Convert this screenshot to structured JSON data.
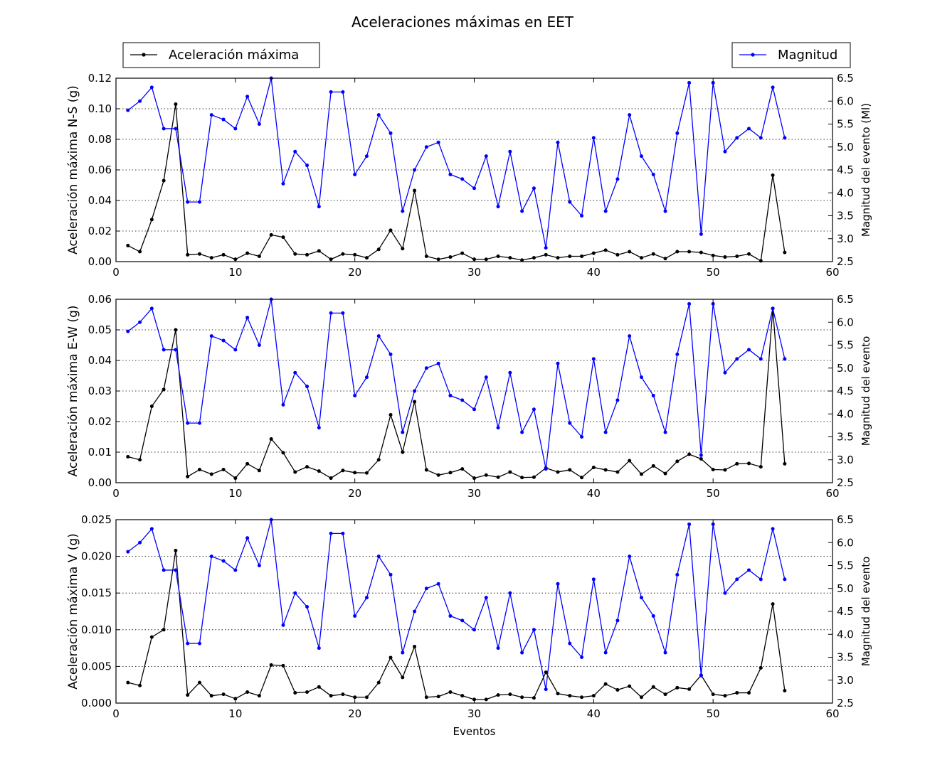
{
  "figure_title": "Aceleraciones máximas en EET",
  "colors": {
    "accel": "#000000",
    "magnitude": "#0000ff",
    "grid": "#000000"
  },
  "legend": {
    "accel": "Aceleración máxima",
    "magnitude": "Magnitud"
  },
  "chart_data": [
    {
      "type": "line",
      "name": "N-S",
      "ylabel": "Aceleración máxima N-S (g)",
      "y2label": "Magnitud del evento (Ml)",
      "xlabel": "",
      "xlim": [
        0,
        60
      ],
      "ylim": [
        0,
        0.12
      ],
      "y2lim": [
        2.5,
        6.5
      ],
      "xticks": [
        0,
        10,
        20,
        30,
        40,
        50,
        60
      ],
      "yticks": [
        0.0,
        0.02,
        0.04,
        0.06,
        0.08,
        0.1,
        0.12
      ],
      "ytick_labels": [
        "0.00",
        "0.02",
        "0.04",
        "0.06",
        "0.08",
        "0.10",
        "0.12"
      ],
      "y2ticks": [
        2.5,
        3.0,
        3.5,
        4.0,
        4.5,
        5.0,
        5.5,
        6.0,
        6.5
      ],
      "y2tick_labels": [
        "2.5",
        "3.0",
        "3.5",
        "4.0",
        "4.5",
        "5.0",
        "5.5",
        "6.0",
        "6.5"
      ],
      "grid": "horizontal-dotted",
      "series": [
        {
          "name": "Aceleración máxima",
          "axis": "left",
          "values": [
            0.0105,
            0.0065,
            0.0275,
            0.053,
            0.103,
            0.0045,
            0.005,
            0.0025,
            0.0045,
            0.0015,
            0.0055,
            0.0035,
            0.0175,
            0.016,
            0.005,
            0.0045,
            0.007,
            0.0015,
            0.005,
            0.0045,
            0.0025,
            0.008,
            0.0205,
            0.0085,
            0.0465,
            0.0035,
            0.0015,
            0.003,
            0.0055,
            0.0015,
            0.0015,
            0.0035,
            0.0025,
            0.001,
            0.0025,
            0.0045,
            0.0025,
            0.0035,
            0.0035,
            0.0055,
            0.0075,
            0.0045,
            0.0065,
            0.0025,
            0.005,
            0.002,
            0.0065,
            0.0065,
            0.006,
            0.004,
            0.003,
            0.0035,
            0.005,
            0.0005,
            0.0565,
            0.006
          ]
        },
        {
          "name": "Magnitud",
          "axis": "right",
          "values": [
            5.8,
            6.0,
            6.3,
            5.4,
            5.4,
            3.8,
            3.8,
            5.7,
            5.6,
            5.4,
            6.1,
            5.5,
            6.5,
            4.2,
            4.9,
            4.6,
            3.7,
            6.2,
            6.2,
            4.4,
            4.8,
            5.7,
            5.3,
            3.6,
            4.5,
            5.0,
            5.1,
            4.4,
            4.3,
            4.1,
            4.8,
            3.7,
            4.9,
            3.6,
            4.1,
            2.8,
            5.1,
            3.8,
            3.5,
            5.2,
            3.6,
            4.3,
            5.7,
            4.8,
            4.4,
            3.6,
            5.3,
            6.4,
            3.1,
            6.4,
            4.9,
            5.2,
            5.4,
            5.2,
            6.3,
            5.2
          ]
        }
      ]
    },
    {
      "type": "line",
      "name": "E-W",
      "ylabel": "Aceleración máxima E-W (g)",
      "y2label": "Magnitud del evento",
      "xlabel": "",
      "xlim": [
        0,
        60
      ],
      "ylim": [
        0,
        0.06
      ],
      "y2lim": [
        2.5,
        6.5
      ],
      "xticks": [
        0,
        10,
        20,
        30,
        40,
        50,
        60
      ],
      "yticks": [
        0.0,
        0.01,
        0.02,
        0.03,
        0.04,
        0.05,
        0.06
      ],
      "ytick_labels": [
        "0.00",
        "0.01",
        "0.02",
        "0.03",
        "0.04",
        "0.05",
        "0.06"
      ],
      "y2ticks": [
        2.5,
        3.0,
        3.5,
        4.0,
        4.5,
        5.0,
        5.5,
        6.0,
        6.5
      ],
      "y2tick_labels": [
        "2.5",
        "3.0",
        "3.5",
        "4.0",
        "4.5",
        "5.0",
        "5.5",
        "6.0",
        "6.5"
      ],
      "grid": "horizontal-dotted",
      "series": [
        {
          "name": "Aceleración máxima",
          "axis": "left",
          "values": [
            0.0085,
            0.0075,
            0.025,
            0.0305,
            0.05,
            0.002,
            0.0043,
            0.0028,
            0.0043,
            0.0015,
            0.0062,
            0.004,
            0.0143,
            0.0098,
            0.0035,
            0.0052,
            0.0038,
            0.0015,
            0.004,
            0.0033,
            0.0032,
            0.0075,
            0.0222,
            0.01,
            0.0265,
            0.0042,
            0.0025,
            0.0033,
            0.0045,
            0.0015,
            0.0025,
            0.0018,
            0.0035,
            0.0017,
            0.0018,
            0.0048,
            0.0035,
            0.0042,
            0.0017,
            0.005,
            0.0042,
            0.0035,
            0.0072,
            0.0028,
            0.0055,
            0.003,
            0.007,
            0.0093,
            0.0078,
            0.0043,
            0.0042,
            0.0062,
            0.0063,
            0.0052,
            0.057,
            0.0062
          ]
        },
        {
          "name": "Magnitud",
          "axis": "right",
          "values": [
            5.8,
            6.0,
            6.3,
            5.4,
            5.4,
            3.8,
            3.8,
            5.7,
            5.6,
            5.4,
            6.1,
            5.5,
            6.5,
            4.2,
            4.9,
            4.6,
            3.7,
            6.2,
            6.2,
            4.4,
            4.8,
            5.7,
            5.3,
            3.6,
            4.5,
            5.0,
            5.1,
            4.4,
            4.3,
            4.1,
            4.8,
            3.7,
            4.9,
            3.6,
            4.1,
            2.8,
            5.1,
            3.8,
            3.5,
            5.2,
            3.6,
            4.3,
            5.7,
            4.8,
            4.4,
            3.6,
            5.3,
            6.4,
            3.1,
            6.4,
            4.9,
            5.2,
            5.4,
            5.2,
            6.3,
            5.2
          ]
        }
      ]
    },
    {
      "type": "line",
      "name": "V",
      "ylabel": "Aceleración máxima V (g)",
      "y2label": "Magnitud del evento",
      "xlabel": "Eventos",
      "xlim": [
        0,
        60
      ],
      "ylim": [
        0,
        0.025
      ],
      "y2lim": [
        2.5,
        6.5
      ],
      "xticks": [
        0,
        10,
        20,
        30,
        40,
        50,
        60
      ],
      "yticks": [
        0.0,
        0.005,
        0.01,
        0.015,
        0.02,
        0.025
      ],
      "ytick_labels": [
        "0.000",
        "0.005",
        "0.010",
        "0.015",
        "0.020",
        "0.025"
      ],
      "y2ticks": [
        2.5,
        3.0,
        3.5,
        4.0,
        4.5,
        5.0,
        5.5,
        6.0,
        6.5
      ],
      "y2tick_labels": [
        "2.5",
        "3.0",
        "3.5",
        "4.0",
        "4.5",
        "5.0",
        "5.5",
        "6.0",
        "6.5"
      ],
      "grid": "horizontal-dotted",
      "series": [
        {
          "name": "Aceleración máxima",
          "axis": "left",
          "values": [
            0.0028,
            0.0024,
            0.009,
            0.01,
            0.0208,
            0.0011,
            0.0028,
            0.001,
            0.0012,
            0.0006,
            0.0015,
            0.001,
            0.0052,
            0.0051,
            0.0014,
            0.0015,
            0.0022,
            0.001,
            0.0012,
            0.0008,
            0.0008,
            0.0028,
            0.0062,
            0.0035,
            0.0077,
            0.0008,
            0.0009,
            0.0015,
            0.001,
            0.0005,
            0.0005,
            0.0011,
            0.0012,
            0.0008,
            0.0007,
            0.0042,
            0.0013,
            0.001,
            0.0008,
            0.001,
            0.0026,
            0.0018,
            0.0023,
            0.0008,
            0.0022,
            0.0012,
            0.0021,
            0.0019,
            0.0038,
            0.0012,
            0.001,
            0.0014,
            0.0014,
            0.0048,
            0.0135,
            0.0017
          ]
        },
        {
          "name": "Magnitud",
          "axis": "right",
          "values": [
            5.8,
            6.0,
            6.3,
            5.4,
            5.4,
            3.8,
            3.8,
            5.7,
            5.6,
            5.4,
            6.1,
            5.5,
            6.5,
            4.2,
            4.9,
            4.6,
            3.7,
            6.2,
            6.2,
            4.4,
            4.8,
            5.7,
            5.3,
            3.6,
            4.5,
            5.0,
            5.1,
            4.4,
            4.3,
            4.1,
            4.8,
            3.7,
            4.9,
            3.6,
            4.1,
            2.8,
            5.1,
            3.8,
            3.5,
            5.2,
            3.6,
            4.3,
            5.7,
            4.8,
            4.4,
            3.6,
            5.3,
            6.4,
            3.1,
            6.4,
            4.9,
            5.2,
            5.4,
            5.2,
            6.3,
            5.2
          ]
        }
      ]
    }
  ]
}
